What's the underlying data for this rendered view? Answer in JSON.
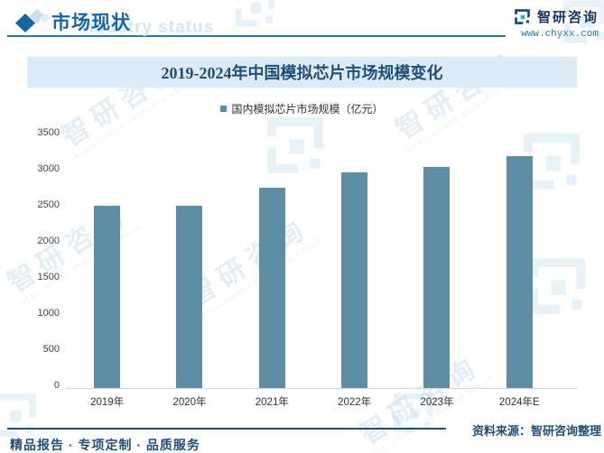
{
  "header": {
    "section_title": "市场现状",
    "watermark_text": "industry status",
    "brand_name": "智研咨询",
    "brand_site": "www.chyxx.com"
  },
  "chart_data": {
    "type": "bar",
    "title": "2019-2024年中国模拟芯片市场规模变化",
    "legend": [
      "国内模拟芯片市场规模（亿元）"
    ],
    "legend_position": "top-center",
    "categories": [
      "2019年",
      "2020年",
      "2021年",
      "2022年",
      "2023年",
      "2024年E"
    ],
    "values": [
      2500,
      2500,
      2740,
      2950,
      3030,
      3180
    ],
    "ylim": [
      0,
      3500
    ],
    "yticks": [
      0,
      500,
      1000,
      1500,
      2000,
      2500,
      3000,
      3500
    ],
    "xlabel": "",
    "ylabel": "",
    "grid": false,
    "bar_color": "#5d8ea6"
  },
  "footer": {
    "source": "资料来源：智研咨询整理",
    "services": "精品报告 · 专项定制 · 品质服务"
  },
  "colors": {
    "accent_blue": "#1566a6",
    "dark_blue": "#1f4e79",
    "band_bg": "#dcebf5",
    "bar": "#5d8ea6",
    "rule_blue": "#2e75b6",
    "axis_line": "#d4d4d4"
  }
}
